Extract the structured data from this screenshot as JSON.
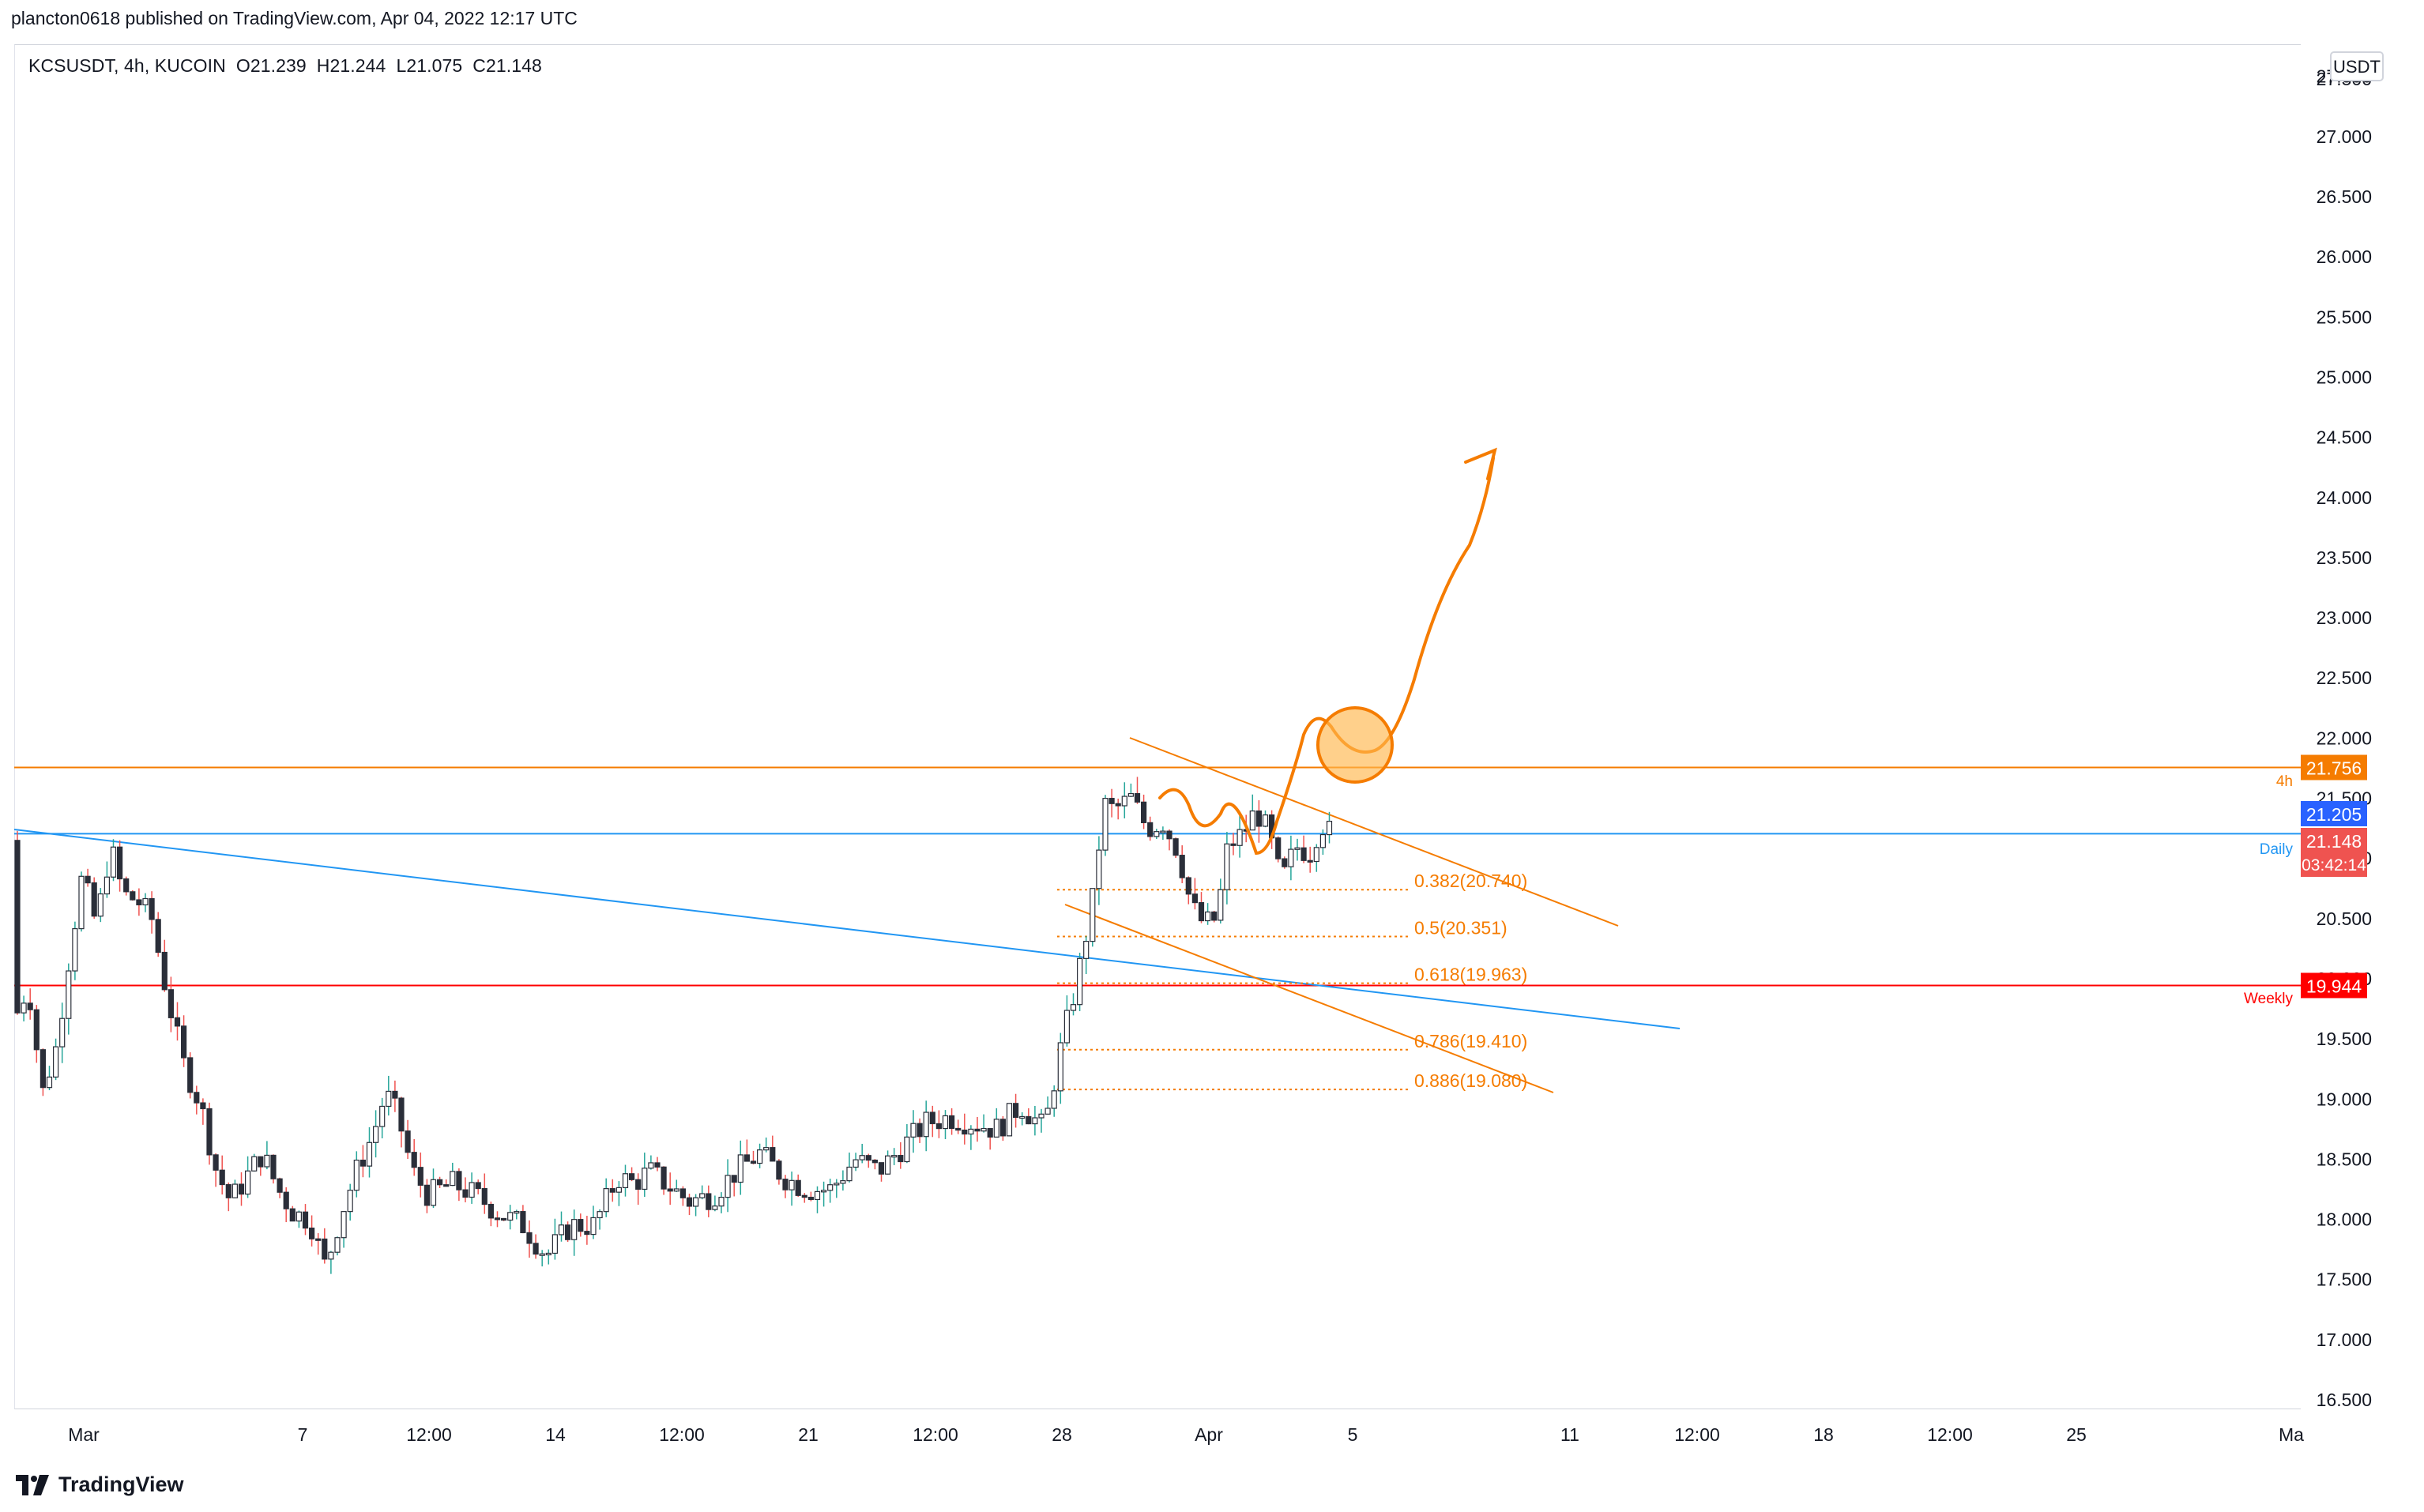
{
  "header": {
    "published": "plancton0618 published on TradingView.com, Apr 04, 2022 12:17 UTC"
  },
  "legend": {
    "symbol": "KCSUSDT, 4h, KUCOIN",
    "open": "O21.239",
    "high": "H21.244",
    "low": "L21.075",
    "close": "C21.148"
  },
  "brand": {
    "name": "TradingView"
  },
  "colors": {
    "up": "#26a69a",
    "down": "#ef5350",
    "candle_body": "#2a2e39",
    "orange": "#f57c00",
    "blue": "#2196f3",
    "red": "#ff0000",
    "grid_text": "#131722"
  },
  "chart_data": {
    "type": "candlestick",
    "currency": "USDT",
    "ylim": [
      16.3,
      27.7
    ],
    "y_ticks": [
      "16.500",
      "17.000",
      "17.500",
      "18.000",
      "18.500",
      "19.000",
      "19.500",
      "20.000",
      "20.500",
      "21.000",
      "21.500",
      "22.000",
      "22.500",
      "23.000",
      "23.500",
      "24.000",
      "24.500",
      "25.000",
      "25.500",
      "26.000",
      "26.500",
      "27.000",
      "27.500"
    ],
    "x_ticks": [
      "Mar",
      "7",
      "12:00",
      "14",
      "12:00",
      "21",
      "12:00",
      "28",
      "Apr",
      "5",
      "11",
      "12:00",
      "18",
      "12:00",
      "25",
      "Ma"
    ],
    "price_labels": [
      {
        "label": "21.756",
        "value": 21.756,
        "color": "#f57c00"
      },
      {
        "label": "21.205",
        "value": 21.205,
        "color": "#2962ff"
      },
      {
        "label": "21.148",
        "sub": "03:42:14",
        "value": 21.148,
        "color": "#ef5350"
      },
      {
        "label": "19.944",
        "value": 19.944,
        "color": "#ff0000"
      }
    ],
    "horizontal_levels": [
      {
        "name": "4h",
        "value": 21.756,
        "color": "#f57c00"
      },
      {
        "name": "Daily",
        "value": 21.205,
        "color": "#2196f3"
      },
      {
        "name": "Weekly",
        "value": 19.944,
        "color": "#ff0000"
      }
    ],
    "fib_levels": [
      {
        "label": "0.382(20.740)",
        "value": 20.74
      },
      {
        "label": "0.5(20.351)",
        "value": 20.351
      },
      {
        "label": "0.618(19.963)",
        "value": 19.963
      },
      {
        "label": "0.786(19.410)",
        "value": 19.41
      },
      {
        "label": "0.886(19.080)",
        "value": 19.08
      }
    ]
  }
}
